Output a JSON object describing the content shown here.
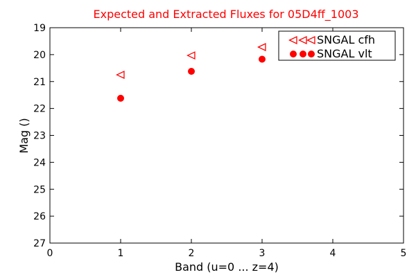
{
  "chart_data": {
    "type": "scatter",
    "title": "Expected and Extracted Fluxes for 05D4ff_1003",
    "xlabel": "Band (u=0 ... z=4)",
    "ylabel": "Mag ()",
    "xlim": [
      0,
      5
    ],
    "ylim": [
      19,
      27
    ],
    "y_inverted": true,
    "grid": false,
    "legend_position": "top-right",
    "x_ticks": [
      "0",
      "1",
      "2",
      "3",
      "4",
      "5"
    ],
    "y_ticks": [
      "19",
      "20",
      "21",
      "22",
      "23",
      "24",
      "25",
      "26",
      "27"
    ],
    "series": [
      {
        "name": "SNGAL cfh",
        "marker": "triangle-left-open",
        "color": "#ff0000",
        "points": [
          {
            "x": 1,
            "y": 20.75
          },
          {
            "x": 2,
            "y": 20.03
          },
          {
            "x": 3,
            "y": 19.72
          }
        ]
      },
      {
        "name": "SNGAL vlt",
        "marker": "circle-filled",
        "color": "#ff0000",
        "points": [
          {
            "x": 1,
            "y": 21.62
          },
          {
            "x": 2,
            "y": 20.62
          },
          {
            "x": 3,
            "y": 20.17
          }
        ]
      }
    ]
  }
}
